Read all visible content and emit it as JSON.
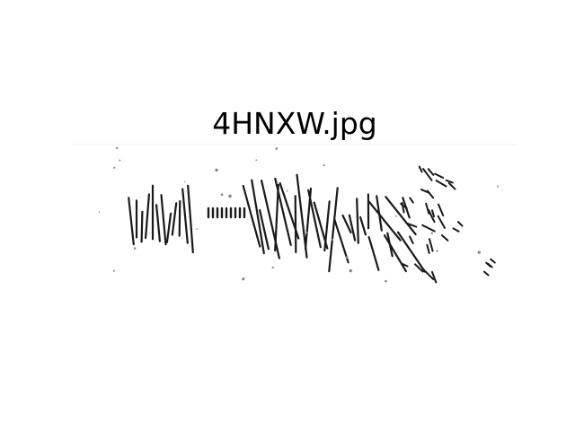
{
  "figure": {
    "title": "4HNXW.jpg",
    "image": {
      "name": "captcha-image",
      "captcha_text": "4HNXW",
      "ink_color": "#1a1a1a",
      "background_color": "#ffffff"
    }
  }
}
